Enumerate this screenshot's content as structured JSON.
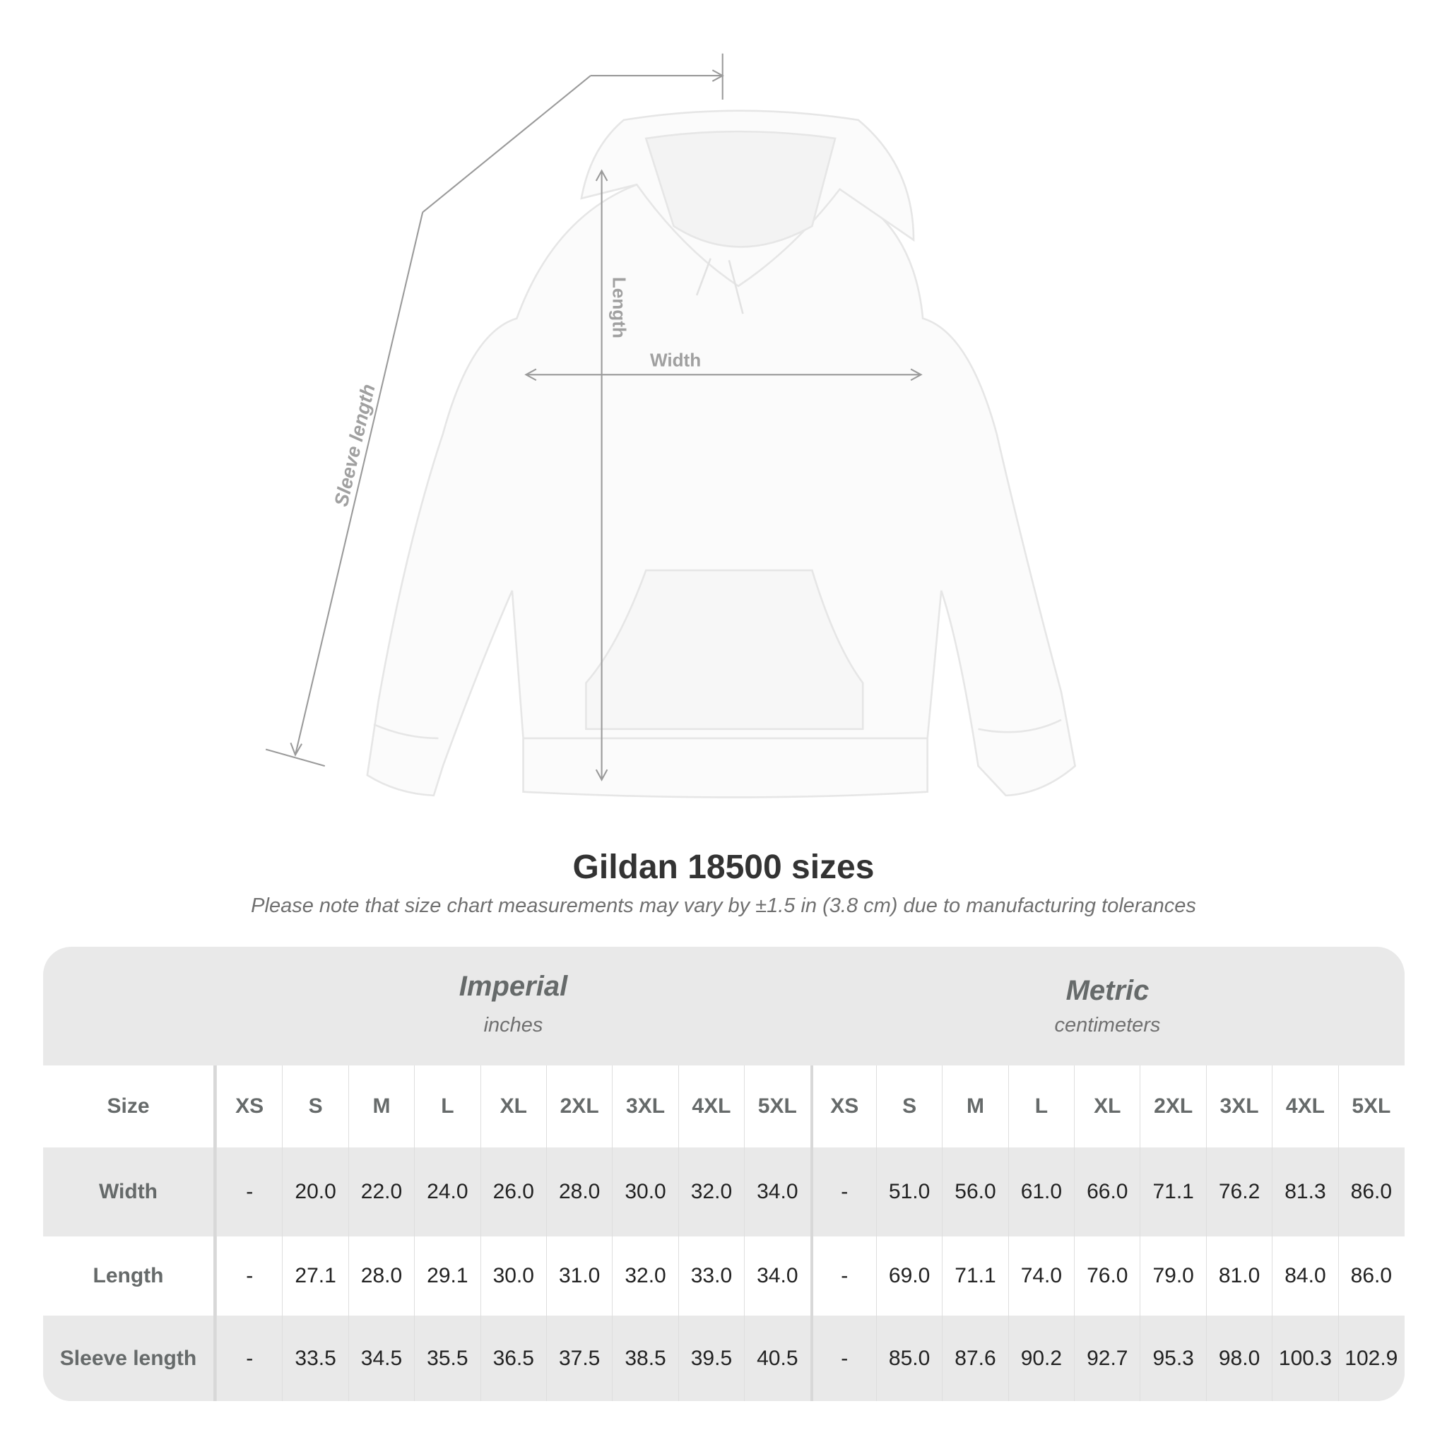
{
  "illustration": {
    "labels": {
      "sleeve": "Sleeve length",
      "length": "Length",
      "width": "Width"
    },
    "line_color": "#9a9a9a"
  },
  "title": "Gildan 18500 sizes",
  "note": "Please note that size chart measurements may vary by ±1.5 in (3.8 cm) due to manufacturing tolerances",
  "table": {
    "imperial": {
      "title": "Imperial",
      "unit": "inches"
    },
    "metric": {
      "title": "Metric",
      "unit": "centimeters"
    },
    "size_label": "Size",
    "sizes": [
      "XS",
      "S",
      "M",
      "L",
      "XL",
      "2XL",
      "3XL",
      "4XL",
      "5XL"
    ],
    "rows": [
      {
        "label": "Width",
        "imperial": [
          "-",
          "20.0",
          "22.0",
          "24.0",
          "26.0",
          "28.0",
          "30.0",
          "32.0",
          "34.0"
        ],
        "metric": [
          "-",
          "51.0",
          "56.0",
          "61.0",
          "66.0",
          "71.1",
          "76.2",
          "81.3",
          "86.0"
        ]
      },
      {
        "label": "Length",
        "imperial": [
          "-",
          "27.1",
          "28.0",
          "29.1",
          "30.0",
          "31.0",
          "32.0",
          "33.0",
          "34.0"
        ],
        "metric": [
          "-",
          "69.0",
          "71.1",
          "74.0",
          "76.0",
          "79.0",
          "81.0",
          "84.0",
          "86.0"
        ]
      },
      {
        "label": "Sleeve length",
        "imperial": [
          "-",
          "33.5",
          "34.5",
          "35.5",
          "36.5",
          "37.5",
          "38.5",
          "39.5",
          "40.5"
        ],
        "metric": [
          "-",
          "85.0",
          "87.6",
          "90.2",
          "92.7",
          "95.3",
          "98.0",
          "100.3",
          "102.9"
        ]
      }
    ]
  }
}
